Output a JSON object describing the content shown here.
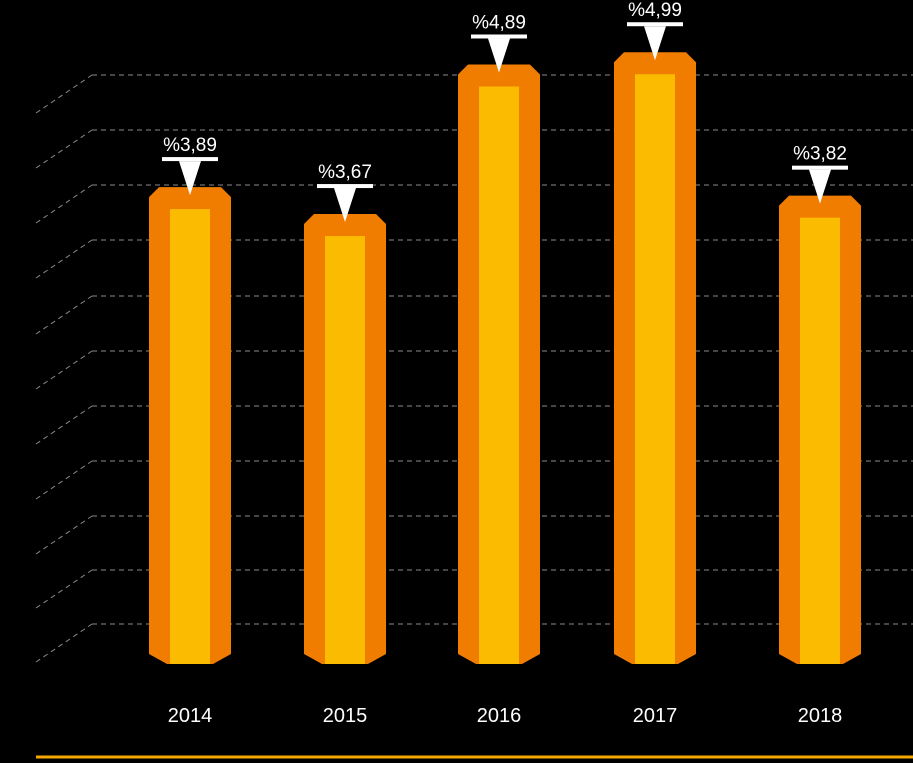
{
  "colors": {
    "background": "#000000",
    "bar_outer": "#f07d00",
    "bar_inner": "#fbbb00",
    "gridline": "#8a8a8a",
    "baseline": "#f5a800",
    "marker": "#ffffff",
    "text": "#ffffff"
  },
  "chart_data": {
    "type": "bar",
    "title": "",
    "xlabel": "",
    "ylabel": "",
    "categories": [
      "2014",
      "2015",
      "2016",
      "2017",
      "2018"
    ],
    "values": [
      3.89,
      3.67,
      4.89,
      4.99,
      3.82
    ],
    "value_labels": [
      "%3,89",
      "%3,67",
      "%4,89",
      "%4,99",
      "%3,82"
    ],
    "ylim": [
      0,
      5.5
    ],
    "grid": true,
    "legend": "none"
  }
}
